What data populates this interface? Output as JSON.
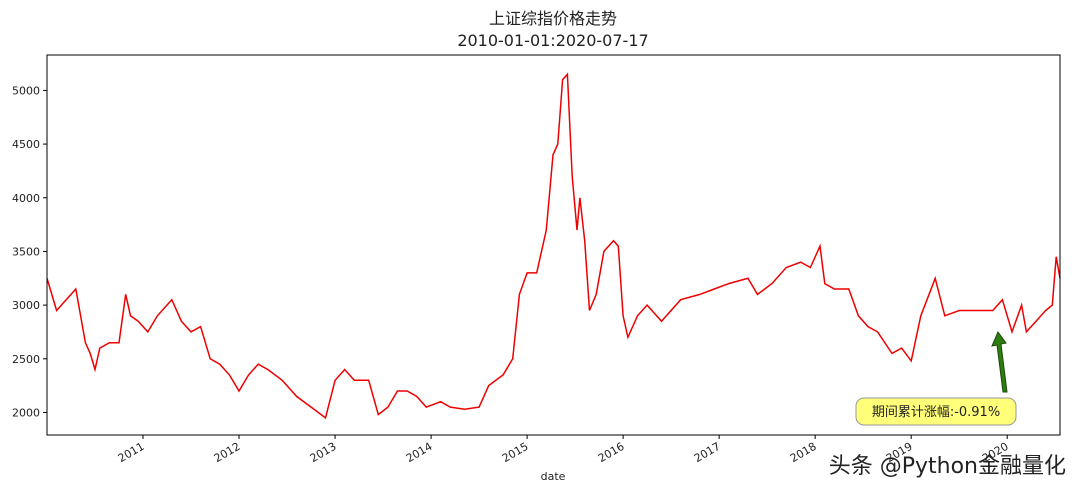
{
  "chart_data": {
    "type": "line",
    "title": "上证综指价格走势",
    "subtitle": "2010-01-01:2020-07-17",
    "xlabel": "date",
    "color": "#ee0000",
    "x": [
      2010.0,
      2010.05,
      2010.1,
      2010.2,
      2010.3,
      2010.35,
      2010.4,
      2010.45,
      2010.5,
      2010.55,
      2010.65,
      2010.75,
      2010.82,
      2010.87,
      2010.95,
      2011.05,
      2011.15,
      2011.3,
      2011.4,
      2011.5,
      2011.6,
      2011.7,
      2011.8,
      2011.9,
      2012.0,
      2012.1,
      2012.2,
      2012.3,
      2012.45,
      2012.6,
      2012.75,
      2012.9,
      2013.0,
      2013.1,
      2013.2,
      2013.35,
      2013.45,
      2013.55,
      2013.65,
      2013.75,
      2013.85,
      2013.95,
      2014.1,
      2014.2,
      2014.35,
      2014.5,
      2014.6,
      2014.75,
      2014.85,
      2014.92,
      2015.0,
      2015.1,
      2015.2,
      2015.27,
      2015.32,
      2015.37,
      2015.42,
      2015.47,
      2015.52,
      2015.55,
      2015.6,
      2015.65,
      2015.72,
      2015.8,
      2015.9,
      2015.95,
      2016.0,
      2016.05,
      2016.15,
      2016.25,
      2016.4,
      2016.6,
      2016.8,
      2016.95,
      2017.1,
      2017.3,
      2017.4,
      2017.55,
      2017.7,
      2017.85,
      2017.95,
      2018.05,
      2018.1,
      2018.2,
      2018.35,
      2018.45,
      2018.55,
      2018.65,
      2018.8,
      2018.9,
      2019.0,
      2019.1,
      2019.25,
      2019.35,
      2019.5,
      2019.6,
      2019.75,
      2019.85,
      2019.95,
      2020.05,
      2020.15,
      2020.2,
      2020.3,
      2020.4,
      2020.47,
      2020.51,
      2020.55
    ],
    "values": [
      3250,
      3100,
      2950,
      3050,
      3150,
      2900,
      2650,
      2550,
      2400,
      2600,
      2650,
      2650,
      3100,
      2900,
      2850,
      2750,
      2900,
      3050,
      2850,
      2750,
      2800,
      2500,
      2450,
      2350,
      2200,
      2350,
      2450,
      2400,
      2300,
      2150,
      2050,
      1950,
      2300,
      2400,
      2300,
      2300,
      1980,
      2050,
      2200,
      2200,
      2150,
      2050,
      2100,
      2050,
      2030,
      2050,
      2250,
      2350,
      2500,
      3100,
      3300,
      3300,
      3700,
      4400,
      4500,
      5100,
      5150,
      4200,
      3700,
      4000,
      3600,
      2950,
      3100,
      3500,
      3600,
      3550,
      2900,
      2700,
      2900,
      3000,
      2850,
      3050,
      3100,
      3150,
      3200,
      3250,
      3100,
      3200,
      3350,
      3400,
      3350,
      3550,
      3200,
      3150,
      3150,
      2900,
      2800,
      2750,
      2550,
      2600,
      2480,
      2900,
      3250,
      2900,
      2950,
      2950,
      2950,
      2950,
      3050,
      2750,
      3000,
      2750,
      2850,
      2950,
      3000,
      3450,
      3250
    ],
    "xlim": [
      2010.0,
      2020.55
    ],
    "xticks": [
      2011,
      2012,
      2013,
      2014,
      2015,
      2016,
      2017,
      2018,
      2019,
      2020
    ],
    "ylim": [
      1790,
      5330
    ],
    "yticks": [
      2000,
      2500,
      3000,
      3500,
      4000,
      4500,
      5000
    ],
    "annotation": "期间累计涨幅:-0.91%",
    "watermark": "头条 @Python金融量化"
  }
}
